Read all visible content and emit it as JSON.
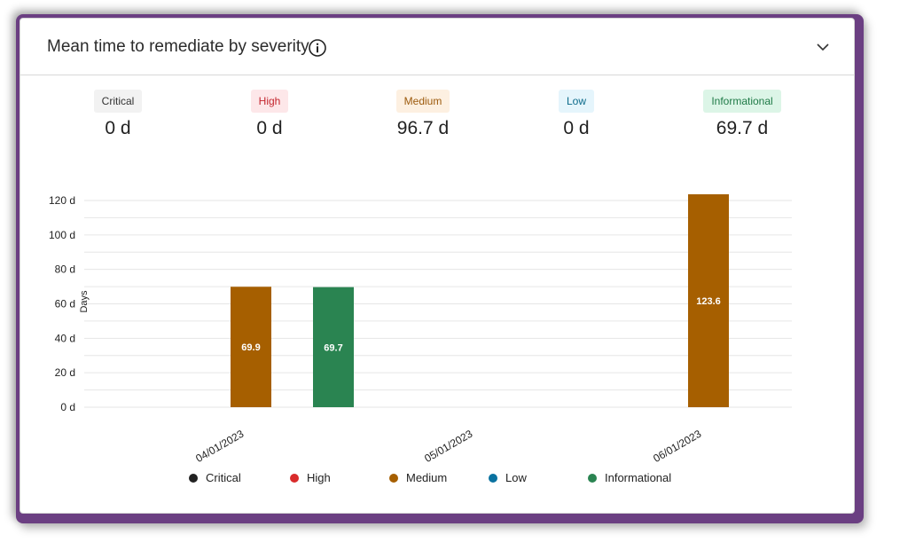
{
  "header": {
    "title": "Mean time to remediate by severity",
    "info_icon": "info-circle-icon",
    "collapse_icon": "chevron-down-icon"
  },
  "stats": [
    {
      "label": "Critical",
      "value": "0 d",
      "bg": "#f2f2f2",
      "fg": "#333333"
    },
    {
      "label": "High",
      "value": "0 d",
      "bg": "#fde7e9",
      "fg": "#c4262e"
    },
    {
      "label": "Medium",
      "value": "96.7 d",
      "bg": "#fdf0e1",
      "fg": "#9c5a0c"
    },
    {
      "label": "Low",
      "value": "0 d",
      "bg": "#e5f5fc",
      "fg": "#0b6a8a"
    },
    {
      "label": "Informational",
      "value": "69.7 d",
      "bg": "#dcf5e7",
      "fg": "#1f7a47"
    }
  ],
  "chart_data": {
    "type": "bar",
    "categories": [
      "04/01/2023",
      "05/01/2023",
      "06/01/2023"
    ],
    "ylabel": "Days",
    "ylim": [
      0,
      120
    ],
    "yticks": [
      "0 d",
      "20 d",
      "40 d",
      "60 d",
      "80 d",
      "100 d",
      "120 d"
    ],
    "grid": true,
    "legend_position": "bottom",
    "series": [
      {
        "name": "Critical",
        "color": "#222222",
        "values": [
          0,
          0,
          0
        ]
      },
      {
        "name": "High",
        "color": "#d92b2b",
        "values": [
          0,
          0,
          0
        ]
      },
      {
        "name": "Medium",
        "color": "#a65f00",
        "values": [
          69.9,
          0,
          123.6
        ]
      },
      {
        "name": "Low",
        "color": "#0a72a0",
        "values": [
          0,
          0,
          0
        ]
      },
      {
        "name": "Informational",
        "color": "#2a8451",
        "values": [
          69.7,
          0,
          0
        ]
      }
    ],
    "data_labels": [
      {
        "category": "04/01/2023",
        "series": "Medium",
        "text": "69.9"
      },
      {
        "category": "04/01/2023",
        "series": "Informational",
        "text": "69.7"
      },
      {
        "category": "06/01/2023",
        "series": "Medium",
        "text": "123.6"
      }
    ]
  }
}
